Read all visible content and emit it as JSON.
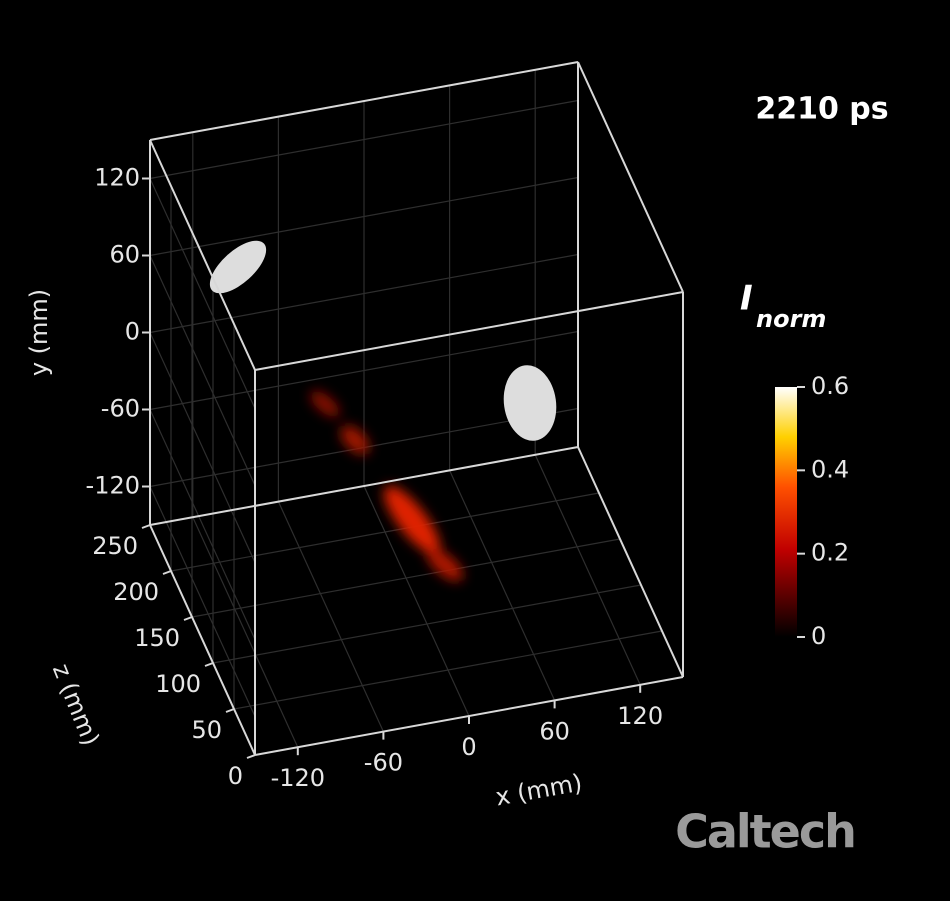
{
  "chart_data": {
    "type": "volume3d",
    "annotation": "2210 ps",
    "watermark": "Caltech",
    "xlabel": "x (mm)",
    "ylabel": "y (mm)",
    "zlabel": "z (mm)",
    "xlim": [
      -150,
      150
    ],
    "xticks": [
      -120,
      -60,
      0,
      60,
      120
    ],
    "ylim": [
      -150,
      150
    ],
    "yticks": [
      -120,
      -60,
      0,
      60,
      120
    ],
    "zlim": [
      0,
      250
    ],
    "zticks": [
      0,
      50,
      100,
      150,
      200,
      250
    ],
    "colorbar": {
      "label": "I",
      "label_subscript": "norm",
      "lim": [
        0,
        0.6
      ],
      "ticks": [
        0,
        0.2,
        0.4,
        0.6
      ]
    }
  }
}
